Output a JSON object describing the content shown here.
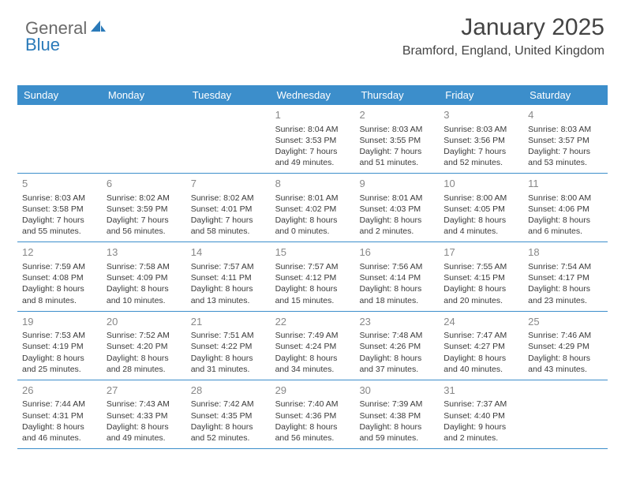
{
  "logo": {
    "text1": "General",
    "text2": "Blue",
    "color_gray": "#6a6a6a",
    "color_blue": "#2a7ab9"
  },
  "title": "January 2025",
  "location": "Bramford, England, United Kingdom",
  "header_bg": "#3c8ecb",
  "header_text_color": "#ffffff",
  "divider_color": "#3c8ecb",
  "daynum_color": "#888888",
  "body_text_color": "#3a3a3a",
  "days_of_week": [
    "Sunday",
    "Monday",
    "Tuesday",
    "Wednesday",
    "Thursday",
    "Friday",
    "Saturday"
  ],
  "weeks": [
    [
      {
        "blank": true
      },
      {
        "blank": true
      },
      {
        "blank": true
      },
      {
        "num": "1",
        "sunrise": "Sunrise: 8:04 AM",
        "sunset": "Sunset: 3:53 PM",
        "daylight1": "Daylight: 7 hours",
        "daylight2": "and 49 minutes."
      },
      {
        "num": "2",
        "sunrise": "Sunrise: 8:03 AM",
        "sunset": "Sunset: 3:55 PM",
        "daylight1": "Daylight: 7 hours",
        "daylight2": "and 51 minutes."
      },
      {
        "num": "3",
        "sunrise": "Sunrise: 8:03 AM",
        "sunset": "Sunset: 3:56 PM",
        "daylight1": "Daylight: 7 hours",
        "daylight2": "and 52 minutes."
      },
      {
        "num": "4",
        "sunrise": "Sunrise: 8:03 AM",
        "sunset": "Sunset: 3:57 PM",
        "daylight1": "Daylight: 7 hours",
        "daylight2": "and 53 minutes."
      }
    ],
    [
      {
        "num": "5",
        "sunrise": "Sunrise: 8:03 AM",
        "sunset": "Sunset: 3:58 PM",
        "daylight1": "Daylight: 7 hours",
        "daylight2": "and 55 minutes."
      },
      {
        "num": "6",
        "sunrise": "Sunrise: 8:02 AM",
        "sunset": "Sunset: 3:59 PM",
        "daylight1": "Daylight: 7 hours",
        "daylight2": "and 56 minutes."
      },
      {
        "num": "7",
        "sunrise": "Sunrise: 8:02 AM",
        "sunset": "Sunset: 4:01 PM",
        "daylight1": "Daylight: 7 hours",
        "daylight2": "and 58 minutes."
      },
      {
        "num": "8",
        "sunrise": "Sunrise: 8:01 AM",
        "sunset": "Sunset: 4:02 PM",
        "daylight1": "Daylight: 8 hours",
        "daylight2": "and 0 minutes."
      },
      {
        "num": "9",
        "sunrise": "Sunrise: 8:01 AM",
        "sunset": "Sunset: 4:03 PM",
        "daylight1": "Daylight: 8 hours",
        "daylight2": "and 2 minutes."
      },
      {
        "num": "10",
        "sunrise": "Sunrise: 8:00 AM",
        "sunset": "Sunset: 4:05 PM",
        "daylight1": "Daylight: 8 hours",
        "daylight2": "and 4 minutes."
      },
      {
        "num": "11",
        "sunrise": "Sunrise: 8:00 AM",
        "sunset": "Sunset: 4:06 PM",
        "daylight1": "Daylight: 8 hours",
        "daylight2": "and 6 minutes."
      }
    ],
    [
      {
        "num": "12",
        "sunrise": "Sunrise: 7:59 AM",
        "sunset": "Sunset: 4:08 PM",
        "daylight1": "Daylight: 8 hours",
        "daylight2": "and 8 minutes."
      },
      {
        "num": "13",
        "sunrise": "Sunrise: 7:58 AM",
        "sunset": "Sunset: 4:09 PM",
        "daylight1": "Daylight: 8 hours",
        "daylight2": "and 10 minutes."
      },
      {
        "num": "14",
        "sunrise": "Sunrise: 7:57 AM",
        "sunset": "Sunset: 4:11 PM",
        "daylight1": "Daylight: 8 hours",
        "daylight2": "and 13 minutes."
      },
      {
        "num": "15",
        "sunrise": "Sunrise: 7:57 AM",
        "sunset": "Sunset: 4:12 PM",
        "daylight1": "Daylight: 8 hours",
        "daylight2": "and 15 minutes."
      },
      {
        "num": "16",
        "sunrise": "Sunrise: 7:56 AM",
        "sunset": "Sunset: 4:14 PM",
        "daylight1": "Daylight: 8 hours",
        "daylight2": "and 18 minutes."
      },
      {
        "num": "17",
        "sunrise": "Sunrise: 7:55 AM",
        "sunset": "Sunset: 4:15 PM",
        "daylight1": "Daylight: 8 hours",
        "daylight2": "and 20 minutes."
      },
      {
        "num": "18",
        "sunrise": "Sunrise: 7:54 AM",
        "sunset": "Sunset: 4:17 PM",
        "daylight1": "Daylight: 8 hours",
        "daylight2": "and 23 minutes."
      }
    ],
    [
      {
        "num": "19",
        "sunrise": "Sunrise: 7:53 AM",
        "sunset": "Sunset: 4:19 PM",
        "daylight1": "Daylight: 8 hours",
        "daylight2": "and 25 minutes."
      },
      {
        "num": "20",
        "sunrise": "Sunrise: 7:52 AM",
        "sunset": "Sunset: 4:20 PM",
        "daylight1": "Daylight: 8 hours",
        "daylight2": "and 28 minutes."
      },
      {
        "num": "21",
        "sunrise": "Sunrise: 7:51 AM",
        "sunset": "Sunset: 4:22 PM",
        "daylight1": "Daylight: 8 hours",
        "daylight2": "and 31 minutes."
      },
      {
        "num": "22",
        "sunrise": "Sunrise: 7:49 AM",
        "sunset": "Sunset: 4:24 PM",
        "daylight1": "Daylight: 8 hours",
        "daylight2": "and 34 minutes."
      },
      {
        "num": "23",
        "sunrise": "Sunrise: 7:48 AM",
        "sunset": "Sunset: 4:26 PM",
        "daylight1": "Daylight: 8 hours",
        "daylight2": "and 37 minutes."
      },
      {
        "num": "24",
        "sunrise": "Sunrise: 7:47 AM",
        "sunset": "Sunset: 4:27 PM",
        "daylight1": "Daylight: 8 hours",
        "daylight2": "and 40 minutes."
      },
      {
        "num": "25",
        "sunrise": "Sunrise: 7:46 AM",
        "sunset": "Sunset: 4:29 PM",
        "daylight1": "Daylight: 8 hours",
        "daylight2": "and 43 minutes."
      }
    ],
    [
      {
        "num": "26",
        "sunrise": "Sunrise: 7:44 AM",
        "sunset": "Sunset: 4:31 PM",
        "daylight1": "Daylight: 8 hours",
        "daylight2": "and 46 minutes."
      },
      {
        "num": "27",
        "sunrise": "Sunrise: 7:43 AM",
        "sunset": "Sunset: 4:33 PM",
        "daylight1": "Daylight: 8 hours",
        "daylight2": "and 49 minutes."
      },
      {
        "num": "28",
        "sunrise": "Sunrise: 7:42 AM",
        "sunset": "Sunset: 4:35 PM",
        "daylight1": "Daylight: 8 hours",
        "daylight2": "and 52 minutes."
      },
      {
        "num": "29",
        "sunrise": "Sunrise: 7:40 AM",
        "sunset": "Sunset: 4:36 PM",
        "daylight1": "Daylight: 8 hours",
        "daylight2": "and 56 minutes."
      },
      {
        "num": "30",
        "sunrise": "Sunrise: 7:39 AM",
        "sunset": "Sunset: 4:38 PM",
        "daylight1": "Daylight: 8 hours",
        "daylight2": "and 59 minutes."
      },
      {
        "num": "31",
        "sunrise": "Sunrise: 7:37 AM",
        "sunset": "Sunset: 4:40 PM",
        "daylight1": "Daylight: 9 hours",
        "daylight2": "and 2 minutes."
      },
      {
        "blank": true
      }
    ]
  ]
}
